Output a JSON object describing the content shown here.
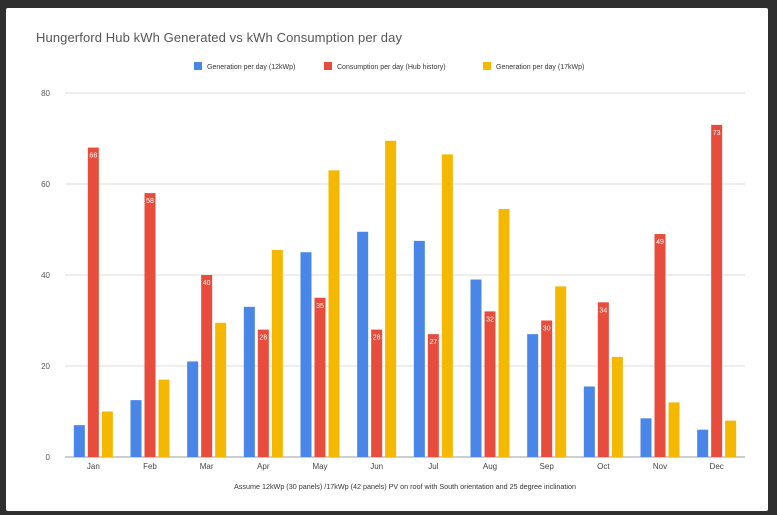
{
  "chart_data": {
    "type": "bar",
    "title": "Hungerford Hub kWh Generated vs kWh Consumption per day",
    "xlabel": "Assume 12kWp (30 panels) /17kWp (42 panels) PV on roof with South orientation and 25 degree inclination",
    "ylabel": "",
    "ylim": [
      0,
      80
    ],
    "yticks": [
      0,
      20,
      40,
      60,
      80
    ],
    "grid": true,
    "legend": "top",
    "categories": [
      "Jan",
      "Feb",
      "Mar",
      "Apr",
      "May",
      "Jun",
      "Jul",
      "Aug",
      "Sep",
      "Oct",
      "Nov",
      "Dec"
    ],
    "series": [
      {
        "name": "Generation per day (12kWp)",
        "color": "#4a86e8",
        "values": [
          7,
          12.5,
          21,
          33,
          45,
          49.5,
          47.5,
          39,
          27,
          15.5,
          8.5,
          6
        ]
      },
      {
        "name": "Consumption per day (Hub history)",
        "color": "#e74c3c",
        "values": [
          68,
          58,
          40,
          28,
          35,
          28,
          27,
          32,
          30,
          34,
          49,
          73
        ],
        "labels": [
          "68",
          "58",
          "40",
          "28",
          "35",
          "28",
          "27",
          "32",
          "30",
          "34",
          "49",
          "73"
        ]
      },
      {
        "name": "Generation per day (17kWp)",
        "color": "#f5b800",
        "values": [
          10,
          17,
          29.5,
          45.5,
          63,
          69.5,
          66.5,
          54.5,
          37.5,
          22,
          12,
          8
        ]
      }
    ]
  }
}
